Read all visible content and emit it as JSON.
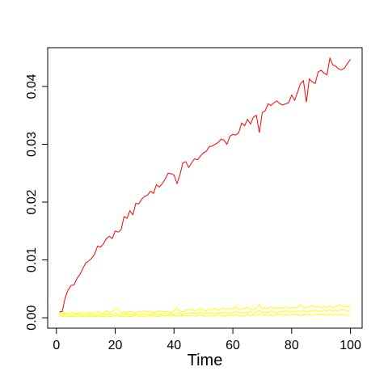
{
  "chart_data": {
    "type": "line",
    "x_label": "Time",
    "x": [
      1,
      2,
      3,
      4,
      5,
      6,
      7,
      8,
      9,
      10,
      11,
      12,
      13,
      14,
      15,
      16,
      17,
      18,
      19,
      20,
      21,
      22,
      23,
      24,
      25,
      26,
      27,
      28,
      29,
      30,
      31,
      32,
      33,
      34,
      35,
      36,
      37,
      38,
      39,
      40,
      41,
      42,
      43,
      44,
      45,
      46,
      47,
      48,
      49,
      50,
      51,
      52,
      53,
      54,
      55,
      56,
      57,
      58,
      59,
      60,
      61,
      62,
      63,
      64,
      65,
      66,
      67,
      68,
      69,
      70,
      71,
      72,
      73,
      74,
      75,
      76,
      77,
      78,
      79,
      80,
      81,
      82,
      83,
      84,
      85,
      86,
      87,
      88,
      89,
      90,
      91,
      92,
      93,
      94,
      95,
      96,
      97,
      98,
      99,
      100
    ],
    "series": [
      {
        "color": "#ff0000",
        "values": [
          0.001,
          0.0011,
          0.0035,
          0.0048,
          0.0056,
          0.0057,
          0.0068,
          0.0075,
          0.0085,
          0.0095,
          0.0098,
          0.0103,
          0.011,
          0.0124,
          0.0122,
          0.0128,
          0.0137,
          0.0141,
          0.0137,
          0.015,
          0.0148,
          0.0152,
          0.0175,
          0.0172,
          0.0185,
          0.0178,
          0.0198,
          0.0197,
          0.0205,
          0.021,
          0.0212,
          0.0219,
          0.0215,
          0.023,
          0.0226,
          0.0232,
          0.024,
          0.025,
          0.0249,
          0.0247,
          0.0232,
          0.0247,
          0.0268,
          0.027,
          0.026,
          0.0268,
          0.0275,
          0.0273,
          0.028,
          0.0285,
          0.0288,
          0.0296,
          0.0297,
          0.03,
          0.0303,
          0.0309,
          0.0307,
          0.03,
          0.0314,
          0.0317,
          0.0316,
          0.032,
          0.0337,
          0.0332,
          0.0343,
          0.0335,
          0.0347,
          0.035,
          0.032,
          0.0355,
          0.0358,
          0.037,
          0.0367,
          0.0372,
          0.0375,
          0.037,
          0.0368,
          0.037,
          0.0372,
          0.0385,
          0.0376,
          0.039,
          0.0405,
          0.041,
          0.0373,
          0.0413,
          0.0408,
          0.0405,
          0.0425,
          0.0428,
          0.0423,
          0.042,
          0.0449,
          0.0437,
          0.0435,
          0.043,
          0.0429,
          0.0432,
          0.044,
          0.0447
        ]
      },
      {
        "color": "#ffff00",
        "values": [
          0.0008,
          0.0009,
          0.0007,
          0.0008,
          0.0009,
          0.0008,
          0.0007,
          0.0009,
          0.0008,
          0.0009,
          0.001,
          0.0008,
          0.0009,
          0.0011,
          0.0009,
          0.0008,
          0.0012,
          0.0009,
          0.001,
          0.0016,
          0.0015,
          0.0009,
          0.001,
          0.0009,
          0.0011,
          0.001,
          0.0009,
          0.0011,
          0.001,
          0.0012,
          0.001,
          0.0011,
          0.0009,
          0.001,
          0.0012,
          0.0011,
          0.001,
          0.0011,
          0.0009,
          0.0012,
          0.0017,
          0.0011,
          0.001,
          0.0013,
          0.0015,
          0.0014,
          0.0012,
          0.0014,
          0.0016,
          0.0013,
          0.0012,
          0.0015,
          0.0014,
          0.0016,
          0.0013,
          0.0015,
          0.0017,
          0.0014,
          0.0016,
          0.0015,
          0.002,
          0.0014,
          0.0015,
          0.0016,
          0.0018,
          0.0015,
          0.0014,
          0.0016,
          0.0023,
          0.0015,
          0.0017,
          0.0016,
          0.0019,
          0.0015,
          0.0018,
          0.0017,
          0.0016,
          0.0019,
          0.0016,
          0.0018,
          0.0017,
          0.0019,
          0.0022,
          0.0018,
          0.0017,
          0.0019,
          0.0021,
          0.0018,
          0.002,
          0.0017,
          0.0019,
          0.0018,
          0.002,
          0.0017,
          0.0019,
          0.0022,
          0.0021,
          0.0019,
          0.002,
          0.0018
        ]
      },
      {
        "color": "#ffff00",
        "values": [
          0.0005,
          0.0004,
          0.0005,
          0.0006,
          0.0004,
          0.0005,
          0.0006,
          0.0005,
          0.0004,
          0.0006,
          0.0005,
          0.0006,
          0.0005,
          0.0004,
          0.0006,
          0.0005,
          0.0007,
          0.0005,
          0.0006,
          0.0008,
          0.0006,
          0.0005,
          0.0006,
          0.0007,
          0.0005,
          0.0006,
          0.0007,
          0.0006,
          0.0005,
          0.0007,
          0.0006,
          0.0007,
          0.0006,
          0.0005,
          0.0007,
          0.0006,
          0.0008,
          0.0006,
          0.0007,
          0.0006,
          0.0009,
          0.0007,
          0.0006,
          0.0008,
          0.0007,
          0.0009,
          0.0007,
          0.0008,
          0.001,
          0.0007,
          0.0008,
          0.0009,
          0.0008,
          0.0007,
          0.0009,
          0.0008,
          0.001,
          0.0008,
          0.0009,
          0.0008,
          0.0011,
          0.0009,
          0.0008,
          0.001,
          0.0009,
          0.0011,
          0.0008,
          0.001,
          0.0012,
          0.0009,
          0.001,
          0.0009,
          0.0011,
          0.001,
          0.0009,
          0.0011,
          0.001,
          0.0012,
          0.001,
          0.0011,
          0.001,
          0.0012,
          0.0011,
          0.0013,
          0.001,
          0.0012,
          0.0011,
          0.0013,
          0.0012,
          0.0011,
          0.0013,
          0.0012,
          0.0014,
          0.0011,
          0.0013,
          0.0012,
          0.0014,
          0.0013,
          0.0012,
          0.0013
        ]
      },
      {
        "color": "#ffff00",
        "values": [
          0.0002,
          0.0002,
          0.0003,
          0.0002,
          0.0003,
          0.0002,
          0.0002,
          0.0003,
          0.0002,
          0.0003,
          0.0002,
          0.0003,
          0.0002,
          0.0003,
          0.0002,
          0.0003,
          0.0003,
          0.0002,
          0.0003,
          0.0004,
          0.0003,
          0.0002,
          0.0003,
          0.0003,
          0.0002,
          0.0003,
          0.0004,
          0.0003,
          0.0002,
          0.0003,
          0.0003,
          0.0004,
          0.0003,
          0.0002,
          0.0003,
          0.0004,
          0.0003,
          0.0003,
          0.0004,
          0.0003,
          0.0004,
          0.0003,
          0.0004,
          0.0003,
          0.0004,
          0.0004,
          0.0003,
          0.0004,
          0.0005,
          0.0003,
          0.0004,
          0.0004,
          0.0003,
          0.0004,
          0.0005,
          0.0004,
          0.0003,
          0.0004,
          0.0005,
          0.0004,
          0.0005,
          0.0004,
          0.0003,
          0.0004,
          0.0005,
          0.0004,
          0.0005,
          0.0004,
          0.0006,
          0.0004,
          0.0005,
          0.0004,
          0.0005,
          0.0004,
          0.0005,
          0.0006,
          0.0004,
          0.0005,
          0.0004,
          0.0005,
          0.0006,
          0.0005,
          0.0004,
          0.0005,
          0.0006,
          0.0005,
          0.0004,
          0.0006,
          0.0005,
          0.0006,
          0.0005,
          0.0004,
          0.0006,
          0.0005,
          0.0006,
          0.0005,
          0.0006,
          0.0005,
          0.0004,
          0.0005
        ]
      }
    ],
    "xlim": [
      -2.96,
      103.96
    ],
    "ylim": [
      -0.0018,
      0.0467
    ],
    "xticks": [
      0,
      20,
      40,
      60,
      80,
      100
    ],
    "yticks": [
      {
        "value": 0,
        "label": "0.00"
      },
      {
        "value": 0.01,
        "label": "0.01"
      },
      {
        "value": 0.02,
        "label": "0.02"
      },
      {
        "value": 0.03,
        "label": "0.03"
      },
      {
        "value": 0.04,
        "label": "0.04"
      }
    ]
  }
}
